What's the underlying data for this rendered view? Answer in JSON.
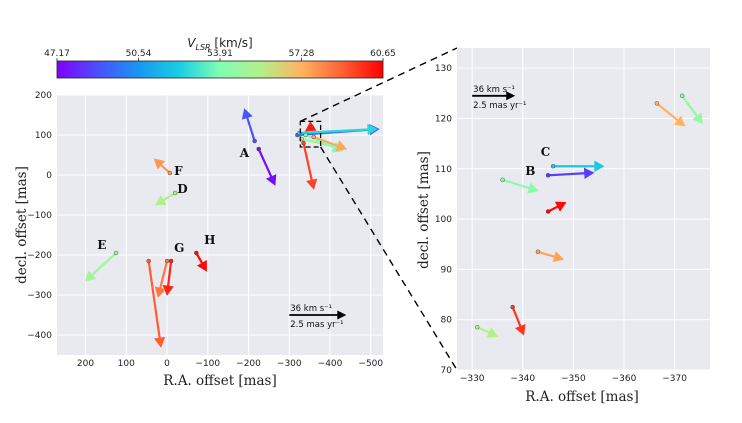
{
  "colors": {
    "panel_bg": "#e9e9f0",
    "grid": "#ffffff",
    "zoom_box": "#000000"
  },
  "chart_data": {
    "type": "vector-field",
    "colorbar": {
      "title": "V_LSR [km/s]",
      "title_main": "V",
      "title_sub": "LSR",
      "title_unit": " [km/s]",
      "min": 47.17,
      "max": 60.65,
      "ticks": [
        "47.17",
        "50.54",
        "53.91",
        "57.28",
        "60.65"
      ],
      "colormap": "rainbow"
    },
    "panels": [
      {
        "id": "main",
        "xlabel": "R.A. offset [mas]",
        "ylabel": "decl. offset [mas]",
        "xlim": [
          270,
          -530
        ],
        "ylim": [
          -450,
          200
        ],
        "xticks": [
          200,
          100,
          0,
          -100,
          -200,
          -300,
          -400,
          -500
        ],
        "xtick_labels": [
          "200",
          "100",
          "0",
          "−100",
          "−200",
          "−300",
          "−400",
          "−500"
        ],
        "yticks": [
          200,
          100,
          0,
          -100,
          -200,
          -300,
          -400
        ],
        "ytick_labels": [
          "200",
          "100",
          "0",
          "−100",
          "−200",
          "−300",
          "−400"
        ],
        "scale_arrow": {
          "line1": "36 km s⁻¹",
          "line2": "2.5 mas yr⁻¹",
          "ra": -300,
          "dec": -350,
          "dx": -140
        },
        "labels": [
          {
            "text": "A",
            "ra": -190,
            "dec": 45
          },
          {
            "text": "F",
            "ra": -28,
            "dec": 0
          },
          {
            "text": "D",
            "ra": -38,
            "dec": -45
          },
          {
            "text": "E",
            "ra": 160,
            "dec": -185
          },
          {
            "text": "G",
            "ra": -30,
            "dec": -193
          },
          {
            "text": "H",
            "ra": -105,
            "dec": -172
          }
        ],
        "vectors": [
          {
            "ra": -215,
            "dec": 85,
            "dx": 25,
            "dy": 80,
            "v": 49.0
          },
          {
            "ra": -225,
            "dec": 65,
            "dx": -40,
            "dy": -90,
            "v": 47.5
          },
          {
            "ra": -7,
            "dec": 5,
            "dx": 38,
            "dy": 35,
            "v": 57.8
          },
          {
            "ra": -20,
            "dec": -45,
            "dx": 48,
            "dy": -30,
            "v": 55.5
          },
          {
            "ra": 125,
            "dec": -195,
            "dx": 75,
            "dy": -70,
            "v": 55.0
          },
          {
            "ra": -10,
            "dec": -215,
            "dx": 10,
            "dy": -85,
            "v": 60.0
          },
          {
            "ra": 0,
            "dec": -215,
            "dx": 22,
            "dy": -90,
            "v": 58.5
          },
          {
            "ra": 45,
            "dec": -215,
            "dx": -30,
            "dy": -215,
            "v": 59.0
          },
          {
            "ra": -72,
            "dec": -195,
            "dx": -25,
            "dy": -45,
            "v": 60.5
          },
          {
            "ra": -320,
            "dec": 100,
            "dx": -200,
            "dy": 15,
            "v": 49.5
          },
          {
            "ra": -325,
            "dec": 105,
            "dx": -190,
            "dy": 10,
            "v": 52.5
          },
          {
            "ra": -330,
            "dec": 90,
            "dx": -110,
            "dy": -25,
            "v": 55.0
          },
          {
            "ra": -340,
            "dec": 100,
            "dx": -90,
            "dy": -40,
            "v": 54.0
          },
          {
            "ra": -360,
            "dec": 95,
            "dx": -80,
            "dy": -30,
            "v": 57.5
          },
          {
            "ra": -335,
            "dec": 80,
            "dx": -25,
            "dy": -115,
            "v": 59.5
          },
          {
            "ra": -355,
            "dec": 120,
            "dx": 15,
            "dy": -10,
            "v": 60.0
          }
        ]
      },
      {
        "id": "zoom",
        "xlabel": "R.A. offset [mas]",
        "ylabel": "decl. offset [mas]",
        "xlim": [
          -327,
          -377
        ],
        "ylim": [
          70,
          134
        ],
        "xticks": [
          -330,
          -340,
          -350,
          -360,
          -370
        ],
        "xtick_labels": [
          "−330",
          "−340",
          "−350",
          "−360",
          "−370"
        ],
        "yticks": [
          70,
          80,
          90,
          100,
          110,
          120,
          130
        ],
        "ytick_labels": [
          "70",
          "80",
          "90",
          "100",
          "110",
          "120",
          "130"
        ],
        "scale_arrow": {
          "line1": "36 km s⁻¹",
          "line2": "2.5 mas yr⁻¹",
          "ra": -330,
          "dec": 124.5,
          "dx": -8.5
        },
        "labels": [
          {
            "text": "C",
            "ra": -344.5,
            "dec": 112.5
          },
          {
            "text": "B",
            "ra": -341.5,
            "dec": 108.8
          }
        ],
        "vectors": [
          {
            "ra": -346,
            "dec": 110.5,
            "dx": -10,
            "dy": 0,
            "v": 52.0
          },
          {
            "ra": -345,
            "dec": 108.7,
            "dx": -9,
            "dy": 0.5,
            "v": 48.5
          },
          {
            "ra": -336,
            "dec": 107.8,
            "dx": -7,
            "dy": -2.2,
            "v": 54.2
          },
          {
            "ra": -345,
            "dec": 101.5,
            "dx": -3.5,
            "dy": 1.8,
            "v": 60.5
          },
          {
            "ra": -343,
            "dec": 93.5,
            "dx": -5,
            "dy": -1.5,
            "v": 57.6
          },
          {
            "ra": -331,
            "dec": 78.5,
            "dx": -4,
            "dy": -1.8,
            "v": 55.6
          },
          {
            "ra": -338,
            "dec": 82.5,
            "dx": -2.2,
            "dy": -5.5,
            "v": 59.7
          },
          {
            "ra": -366.5,
            "dec": 123,
            "dx": -5.5,
            "dy": -4.5,
            "v": 57.3
          },
          {
            "ra": -371.5,
            "dec": 124.5,
            "dx": -4,
            "dy": -5.5,
            "v": 54.6
          }
        ]
      }
    ]
  }
}
